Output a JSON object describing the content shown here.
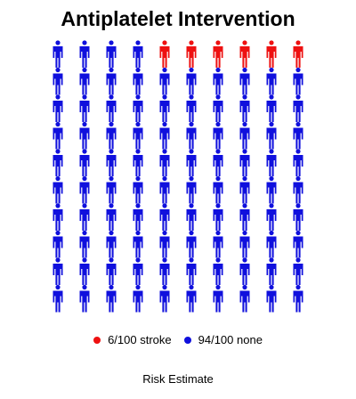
{
  "chart_data": {
    "type": "pictogram",
    "title": "Antiplatelet Intervention",
    "xlabel": "Risk Estimate",
    "total": 100,
    "columns": 10,
    "rows": 10,
    "series": [
      {
        "name": "stroke",
        "label": "6/100 stroke",
        "count": 6,
        "color": "#ee1111"
      },
      {
        "name": "none",
        "label": "94/100 none",
        "count": 94,
        "color": "#1010dd"
      }
    ],
    "legend_position": "bottom",
    "fill_order": "top-row-right-first"
  }
}
